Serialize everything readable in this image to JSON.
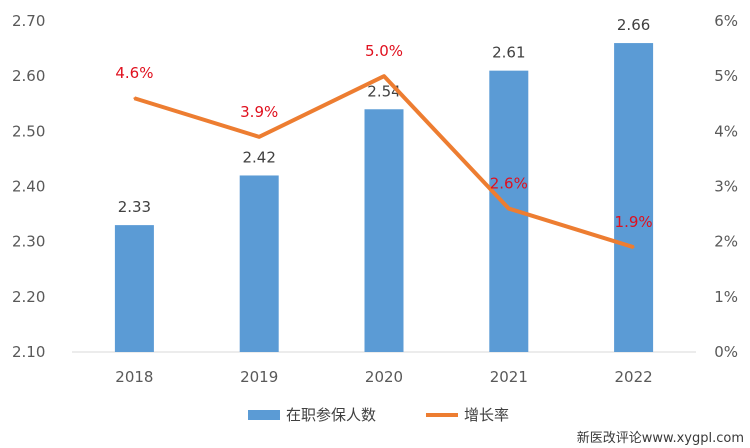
{
  "chart_data": {
    "type": "bar",
    "categories": [
      "2018",
      "2019",
      "2020",
      "2021",
      "2022"
    ],
    "series": [
      {
        "name": "在职参保人数",
        "type": "bar",
        "axis": "left",
        "values": [
          2.33,
          2.42,
          2.54,
          2.61,
          2.66
        ],
        "labels": [
          "2.33",
          "2.42",
          "2.54",
          "2.61",
          "2.66"
        ],
        "color": "#5b9bd5"
      },
      {
        "name": "增长率",
        "type": "line",
        "axis": "right",
        "values": [
          4.6,
          3.9,
          5.0,
          2.6,
          1.9
        ],
        "labels": [
          "4.6%",
          "3.9%",
          "5.0%",
          "2.6%",
          "1.9%"
        ],
        "color": "#ed7d31",
        "label_color": "#e0101e"
      }
    ],
    "y_left": {
      "ylim": [
        2.1,
        2.7
      ],
      "ticks": [
        "2.10",
        "2.20",
        "2.30",
        "2.40",
        "2.50",
        "2.60",
        "2.70"
      ]
    },
    "y_right": {
      "ylim": [
        0,
        6
      ],
      "ticks": [
        "0%",
        "1%",
        "2%",
        "3%",
        "4%",
        "5%",
        "6%"
      ]
    },
    "legend": "bottom",
    "grid": false
  },
  "watermark": "新医改评论www.xygpl.com"
}
